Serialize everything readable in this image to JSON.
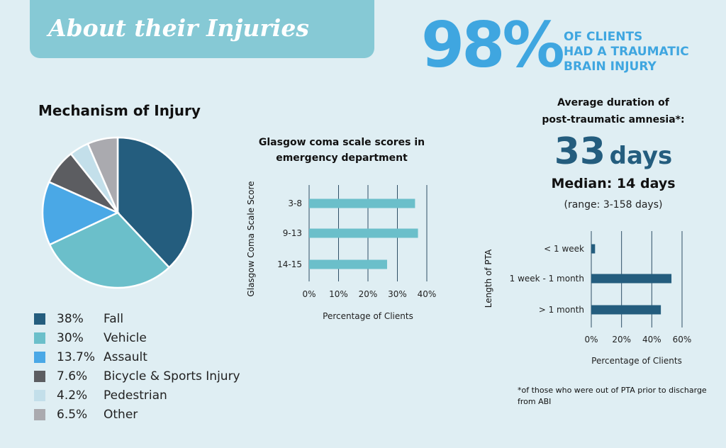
{
  "banner": {
    "title": "About their Injuries"
  },
  "stat": {
    "value": "98%",
    "lines": [
      "OF CLIENTS",
      "HAD A TRAUMATIC",
      "BRAIN INJURY"
    ]
  },
  "pta": {
    "title_line1": "Average duration of",
    "title_line2": "post-traumatic amnesia*:",
    "avg_number": "33",
    "avg_unit": "days",
    "median": "Median: 14 days",
    "range": "(range: 3-158 days)",
    "footnote": "*of those who were out of PTA prior to discharge from ABI"
  },
  "colors": {
    "accent": "#3fa6e0",
    "dark_blue": "#245d7e",
    "teal": "#6bbfca"
  },
  "chart_data": [
    {
      "type": "pie",
      "title": "Mechanism of Injury",
      "slices": [
        {
          "label": "Fall",
          "pct_label": "38%",
          "value": 38,
          "color": "#245d7e"
        },
        {
          "label": "Vehicle",
          "pct_label": "30%",
          "value": 30,
          "color": "#6bbfca"
        },
        {
          "label": "Assault",
          "pct_label": "13.7%",
          "value": 13.7,
          "color": "#4aa8e6"
        },
        {
          "label": "Bicycle & Sports Injury",
          "pct_label": "7.6%",
          "value": 7.6,
          "color": "#5c5d61"
        },
        {
          "label": "Pedestrian",
          "pct_label": "4.2%",
          "value": 4.2,
          "color": "#c3dfea"
        },
        {
          "label": "Other",
          "pct_label": "6.5%",
          "value": 6.5,
          "color": "#aaaaaf"
        }
      ]
    },
    {
      "type": "bar",
      "orientation": "horizontal",
      "title_lines": [
        "Glasgow coma scale scores in",
        "emergency department"
      ],
      "categories": [
        "3-8",
        "9-13",
        "14-15"
      ],
      "values": [
        36,
        37,
        26.5
      ],
      "xlabel": "Percentage of Clients",
      "ylabel": "Glasgow Coma Scale Score",
      "xlim": [
        0,
        40
      ],
      "xticks": [
        0,
        10,
        20,
        30,
        40
      ],
      "xtick_labels": [
        "0%",
        "10%",
        "20%",
        "30%",
        "40%"
      ],
      "bar_color": "#6bbfca",
      "grid": true
    },
    {
      "type": "bar",
      "orientation": "horizontal",
      "categories": [
        "< 1 week",
        "1 week - 1 month",
        "> 1 month"
      ],
      "values": [
        2.5,
        53,
        46
      ],
      "xlabel": "Percentage of Clients",
      "ylabel": "Length of PTA",
      "xlim": [
        0,
        60
      ],
      "xticks": [
        0,
        20,
        40,
        60
      ],
      "xtick_labels": [
        "0%",
        "20%",
        "40%",
        "60%"
      ],
      "bar_color": "#245d7e",
      "grid": true
    }
  ]
}
